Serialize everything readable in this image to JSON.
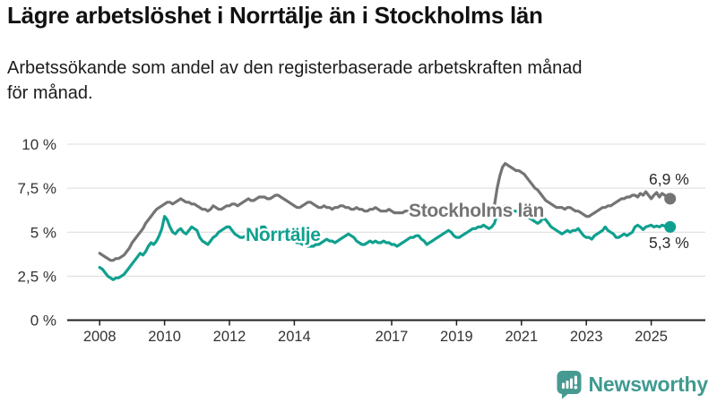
{
  "header": {
    "title": "Lägre arbetslöshet i Norrtälje än i Stockholms län",
    "subtitle_lines": [
      "Arbetssökande som andel av den registerbaserade arbetskraften månad",
      "för månad."
    ]
  },
  "colors": {
    "stockholm_gray": "#747474",
    "norrtalje_teal": "#10a08f",
    "axis_text": "#333333",
    "gridline": "#dcdcdc",
    "axis_line": "#1f1f1f",
    "logo_teal": "#3f9a90",
    "logo_icon_teal": "#479a91"
  },
  "chart_data": {
    "type": "line",
    "title": "Lägre arbetslöshet i Norrtälje än i Stockholms län",
    "subtitle": "Arbetssökande som andel av den registerbaserade arbetskraften månad för månad.",
    "x_unit": "month",
    "x_start": 2008.0,
    "x_end": 2025.583,
    "ylim": [
      0,
      10
    ],
    "grid": true,
    "legend_position": "inline-labels",
    "y_ticks": [
      0,
      2.5,
      5,
      7.5,
      10
    ],
    "y_tick_labels": [
      "0 %",
      "2,5 %",
      "5 %",
      "7,5 %",
      "10 %"
    ],
    "x_tick_years": [
      2008,
      2010,
      2012,
      2014,
      2017,
      2019,
      2021,
      2023,
      2025
    ],
    "x_tick_labels": [
      "2008",
      "2010",
      "2012",
      "2014",
      "2017",
      "2019",
      "2021",
      "2023",
      "2025"
    ],
    "series": [
      {
        "id": "stockholms-lan",
        "name": "Stockholms län",
        "color": "#747474",
        "end_value": 6.9,
        "end_label": "6,9 %",
        "values": [
          3.8,
          3.7,
          3.6,
          3.5,
          3.4,
          3.4,
          3.5,
          3.5,
          3.6,
          3.7,
          3.9,
          4.1,
          4.4,
          4.6,
          4.8,
          5.0,
          5.2,
          5.5,
          5.7,
          5.9,
          6.1,
          6.3,
          6.4,
          6.5,
          6.6,
          6.7,
          6.7,
          6.6,
          6.7,
          6.8,
          6.9,
          6.8,
          6.7,
          6.7,
          6.6,
          6.6,
          6.5,
          6.4,
          6.3,
          6.3,
          6.2,
          6.3,
          6.5,
          6.4,
          6.3,
          6.3,
          6.4,
          6.5,
          6.5,
          6.6,
          6.6,
          6.5,
          6.6,
          6.7,
          6.8,
          6.9,
          6.8,
          6.8,
          6.9,
          7.0,
          7.0,
          7.0,
          6.9,
          6.9,
          7.0,
          7.1,
          7.1,
          7.0,
          6.9,
          6.8,
          6.7,
          6.6,
          6.5,
          6.4,
          6.4,
          6.5,
          6.6,
          6.7,
          6.7,
          6.6,
          6.5,
          6.4,
          6.4,
          6.5,
          6.4,
          6.4,
          6.3,
          6.4,
          6.4,
          6.5,
          6.5,
          6.4,
          6.4,
          6.3,
          6.3,
          6.4,
          6.3,
          6.3,
          6.2,
          6.2,
          6.3,
          6.3,
          6.4,
          6.3,
          6.2,
          6.2,
          6.2,
          6.3,
          6.2,
          6.1,
          6.1,
          6.1,
          6.1,
          6.2,
          6.2,
          6.2,
          6.1,
          6.1,
          6.1,
          6.2,
          6.2,
          6.1,
          6.1,
          6.0,
          6.1,
          6.1,
          6.2,
          6.2,
          6.1,
          6.1,
          6.1,
          6.2,
          6.2,
          6.1,
          6.1,
          6.1,
          6.2,
          6.2,
          6.3,
          6.3,
          6.2,
          6.2,
          6.3,
          6.3,
          6.3,
          6.3,
          6.5,
          7.5,
          8.2,
          8.7,
          8.9,
          8.8,
          8.7,
          8.6,
          8.5,
          8.5,
          8.4,
          8.3,
          8.1,
          7.9,
          7.7,
          7.5,
          7.4,
          7.2,
          7.0,
          6.8,
          6.7,
          6.6,
          6.5,
          6.4,
          6.4,
          6.4,
          6.3,
          6.4,
          6.4,
          6.3,
          6.2,
          6.2,
          6.1,
          6.0,
          5.9,
          5.9,
          6.0,
          6.1,
          6.2,
          6.3,
          6.4,
          6.4,
          6.5,
          6.5,
          6.6,
          6.7,
          6.8,
          6.9,
          6.9,
          7.0,
          7.0,
          7.1,
          7.1,
          7.0,
          7.2,
          7.1,
          7.3,
          7.1,
          6.9,
          7.1,
          7.25,
          7.0,
          7.2,
          7.1,
          7.0,
          6.9
        ]
      },
      {
        "id": "norrtalje",
        "name": "Norrtälje",
        "color": "#10a08f",
        "end_value": 5.3,
        "end_label": "5,3 %",
        "values": [
          3.0,
          2.9,
          2.7,
          2.5,
          2.4,
          2.3,
          2.4,
          2.4,
          2.5,
          2.6,
          2.8,
          3.0,
          3.2,
          3.4,
          3.6,
          3.8,
          3.7,
          3.9,
          4.2,
          4.4,
          4.3,
          4.5,
          4.8,
          5.2,
          5.9,
          5.7,
          5.3,
          5.0,
          4.9,
          5.1,
          5.2,
          5.0,
          4.9,
          5.1,
          5.3,
          5.2,
          5.1,
          4.7,
          4.5,
          4.4,
          4.3,
          4.5,
          4.7,
          4.8,
          5.0,
          5.1,
          5.2,
          5.3,
          5.3,
          5.1,
          4.9,
          4.8,
          4.7,
          4.7,
          4.8,
          5.0,
          4.9,
          5.0,
          5.1,
          5.2,
          5.3,
          5.3,
          5.1,
          5.0,
          5.1,
          4.9,
          4.8,
          4.7,
          4.7,
          4.6,
          4.5,
          4.5,
          4.5,
          4.4,
          4.4,
          4.3,
          4.3,
          4.2,
          4.2,
          4.2,
          4.3,
          4.3,
          4.4,
          4.5,
          4.6,
          4.5,
          4.5,
          4.4,
          4.5,
          4.6,
          4.7,
          4.8,
          4.9,
          4.8,
          4.7,
          4.5,
          4.4,
          4.3,
          4.3,
          4.4,
          4.5,
          4.4,
          4.5,
          4.4,
          4.4,
          4.5,
          4.4,
          4.4,
          4.3,
          4.3,
          4.2,
          4.3,
          4.4,
          4.5,
          4.6,
          4.7,
          4.7,
          4.8,
          4.8,
          4.6,
          4.5,
          4.3,
          4.4,
          4.5,
          4.6,
          4.7,
          4.8,
          4.9,
          5.0,
          5.1,
          5.0,
          4.8,
          4.7,
          4.7,
          4.8,
          4.9,
          5.0,
          5.1,
          5.2,
          5.2,
          5.3,
          5.3,
          5.4,
          5.3,
          5.2,
          5.3,
          5.5,
          6.0,
          6.3,
          6.4,
          6.5,
          6.4,
          6.3,
          6.2,
          6.2,
          6.1,
          6.1,
          6.0,
          5.9,
          5.8,
          5.7,
          5.6,
          5.5,
          5.6,
          5.8,
          5.7,
          5.5,
          5.3,
          5.2,
          5.1,
          5.0,
          4.9,
          5.0,
          5.1,
          5.0,
          5.1,
          5.1,
          5.2,
          5.0,
          4.8,
          4.7,
          4.7,
          4.6,
          4.8,
          4.9,
          5.0,
          5.1,
          5.3,
          5.1,
          5.0,
          4.9,
          4.7,
          4.7,
          4.8,
          4.9,
          4.8,
          4.9,
          5.0,
          5.3,
          5.4,
          5.3,
          5.15,
          5.3,
          5.35,
          5.4,
          5.3,
          5.35,
          5.3,
          5.4,
          5.35,
          5.3,
          5.3
        ]
      }
    ]
  },
  "footer": {
    "brand": "Newsworthy"
  }
}
